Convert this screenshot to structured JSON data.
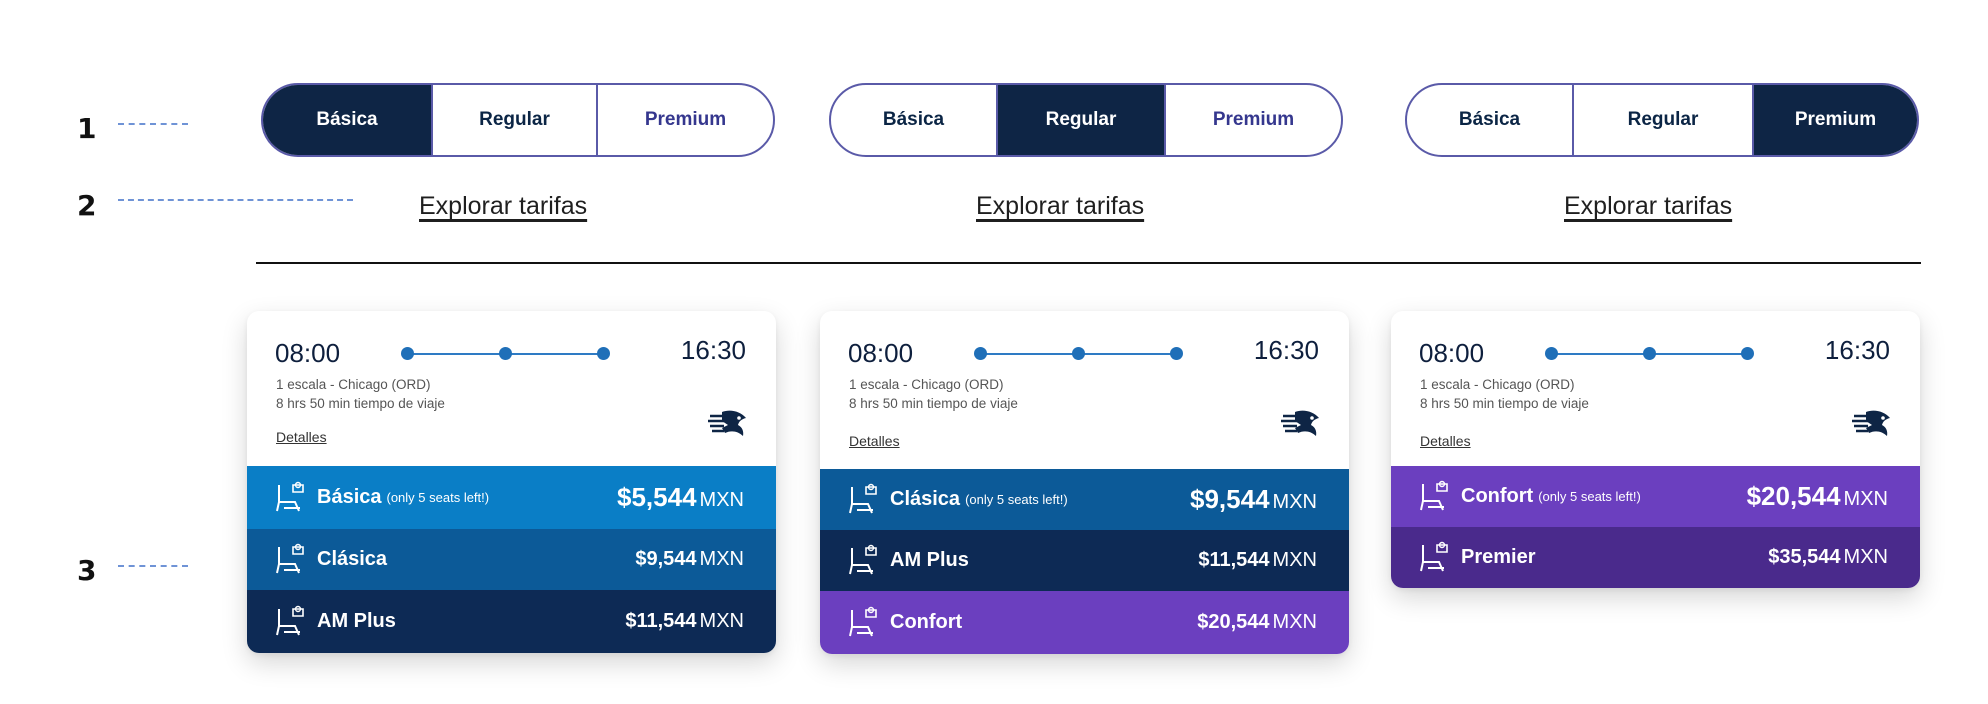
{
  "markers": [
    "1",
    "2",
    "3"
  ],
  "selectors": [
    {
      "options": [
        "Básica",
        "Regular",
        "Premium"
      ],
      "active": 0
    },
    {
      "options": [
        "Básica",
        "Regular",
        "Premium"
      ],
      "active": 1
    },
    {
      "options": [
        "Básica",
        "Regular",
        "Premium"
      ],
      "active": 2
    }
  ],
  "explore_label": "Explorar tarifas",
  "cards": [
    {
      "departure": "08:00",
      "arrival": "16:30",
      "stops": "1 escala - Chicago (ORD)",
      "duration": "8 hrs 50 min tiempo de viaje",
      "details": "Detalles",
      "fares": [
        {
          "name": "Básica",
          "note": "(only 5 seats left!)",
          "price": "$5,544",
          "currency": "MXN",
          "color": "#0a7ec6"
        },
        {
          "name": "Clásica",
          "note": "",
          "price": "$9,544",
          "currency": "MXN",
          "color": "#0c5a98"
        },
        {
          "name": "AM Plus",
          "note": "",
          "price": "$11,544",
          "currency": "MXN",
          "color": "#0d2a55"
        }
      ]
    },
    {
      "departure": "08:00",
      "arrival": "16:30",
      "stops": "1 escala - Chicago (ORD)",
      "duration": "8 hrs 50 min tiempo de viaje",
      "details": "Detalles",
      "fares": [
        {
          "name": "Clásica",
          "note": "(only 5 seats left!)",
          "price": "$9,544",
          "currency": "MXN",
          "color": "#0c5a98"
        },
        {
          "name": "AM Plus",
          "note": "",
          "price": "$11,544",
          "currency": "MXN",
          "color": "#0d2a55"
        },
        {
          "name": "Confort",
          "note": "",
          "price": "$20,544",
          "currency": "MXN",
          "color": "#6b3fbf"
        }
      ]
    },
    {
      "departure": "08:00",
      "arrival": "16:30",
      "stops": "1 escala - Chicago (ORD)",
      "duration": "8 hrs 50 min tiempo de viaje",
      "details": "Detalles",
      "fares": [
        {
          "name": "Confort",
          "note": "(only 5 seats left!)",
          "price": "$20,544",
          "currency": "MXN",
          "color": "#6b3fbf"
        },
        {
          "name": "Premier",
          "note": "",
          "price": "$35,544",
          "currency": "MXN",
          "color": "#4a2a8c"
        }
      ]
    }
  ],
  "icons": {
    "seat": "seat-icon",
    "airline_logo": "aeromexico-logo",
    "route_stop": "route-dot-icon"
  }
}
